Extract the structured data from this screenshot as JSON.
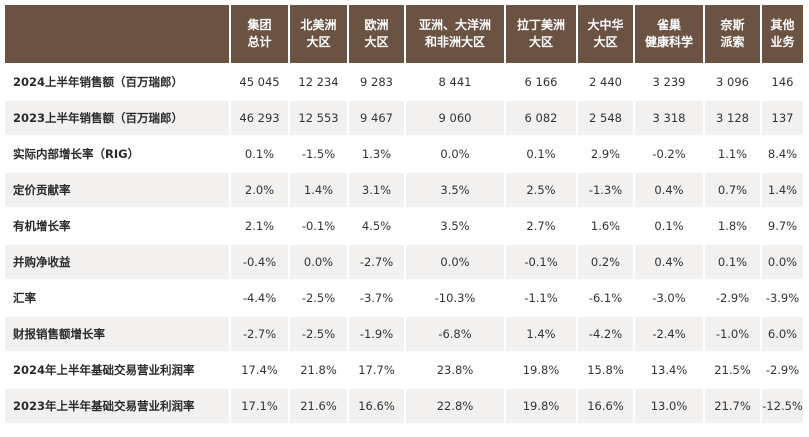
{
  "table": {
    "columns": [
      {
        "line1": "集团",
        "line2": "总计"
      },
      {
        "line1": "北美洲",
        "line2": "大区"
      },
      {
        "line1": "欧洲",
        "line2": "大区"
      },
      {
        "line1": "亚洲、大洋洲",
        "line2": "和非洲大区"
      },
      {
        "line1": "拉丁美洲",
        "line2": "大区"
      },
      {
        "line1": "大中华",
        "line2": "大区"
      },
      {
        "line1": "雀巢",
        "line2": "健康科学"
      },
      {
        "line1": "奈斯",
        "line2": "派索"
      },
      {
        "line1": "其他",
        "line2": "业务"
      }
    ],
    "rows": [
      {
        "label": "2024上半年销售额（百万瑞郎）",
        "values": [
          "45 045",
          "12 234",
          "9 283",
          "8 441",
          "6 166",
          "2 440",
          "3 239",
          "3 096",
          "146"
        ]
      },
      {
        "label": "2023上半年销售额（百万瑞郎）",
        "values": [
          "46 293",
          "12 553",
          "9 467",
          "9 060",
          "6 082",
          "2 548",
          "3 318",
          "3 128",
          "137"
        ]
      },
      {
        "label": "实际内部增长率（RIG）",
        "values": [
          "0.1%",
          "-1.5%",
          "1.3%",
          "0.0%",
          "0.1%",
          "2.9%",
          "-0.2%",
          "1.1%",
          "8.4%"
        ]
      },
      {
        "label": "定价贡献率",
        "values": [
          "2.0%",
          "1.4%",
          "3.1%",
          "3.5%",
          "2.5%",
          "-1.3%",
          "0.4%",
          "0.7%",
          "1.4%"
        ]
      },
      {
        "label": "有机增长率",
        "values": [
          "2.1%",
          "-0.1%",
          "4.5%",
          "3.5%",
          "2.7%",
          "1.6%",
          "0.1%",
          "1.8%",
          "9.7%"
        ]
      },
      {
        "label": "并购净收益",
        "values": [
          "-0.4%",
          "0.0%",
          "-2.7%",
          "0.0%",
          "-0.1%",
          "0.2%",
          "0.4%",
          "0.1%",
          "0.0%"
        ]
      },
      {
        "label": "汇率",
        "values": [
          "-4.4%",
          "-2.5%",
          "-3.7%",
          "-10.3%",
          "-1.1%",
          "-6.1%",
          "-3.0%",
          "-2.9%",
          "-3.9%"
        ]
      },
      {
        "label": "财报销售额增长率",
        "values": [
          "-2.7%",
          "-2.5%",
          "-1.9%",
          "-6.8%",
          "1.4%",
          "-4.2%",
          "-2.4%",
          "-1.0%",
          "6.0%"
        ]
      },
      {
        "label": "2024年上半年基础交易营业利润率",
        "values": [
          "17.4%",
          "21.8%",
          "17.7%",
          "23.8%",
          "19.8%",
          "15.8%",
          "13.4%",
          "21.5%",
          "-2.9%"
        ]
      },
      {
        "label": "2023年上半年基础交易营业利润率",
        "values": [
          "17.1%",
          "21.6%",
          "16.6%",
          "22.8%",
          "19.8%",
          "16.6%",
          "13.0%",
          "21.7%",
          "-12.5%"
        ]
      }
    ]
  }
}
